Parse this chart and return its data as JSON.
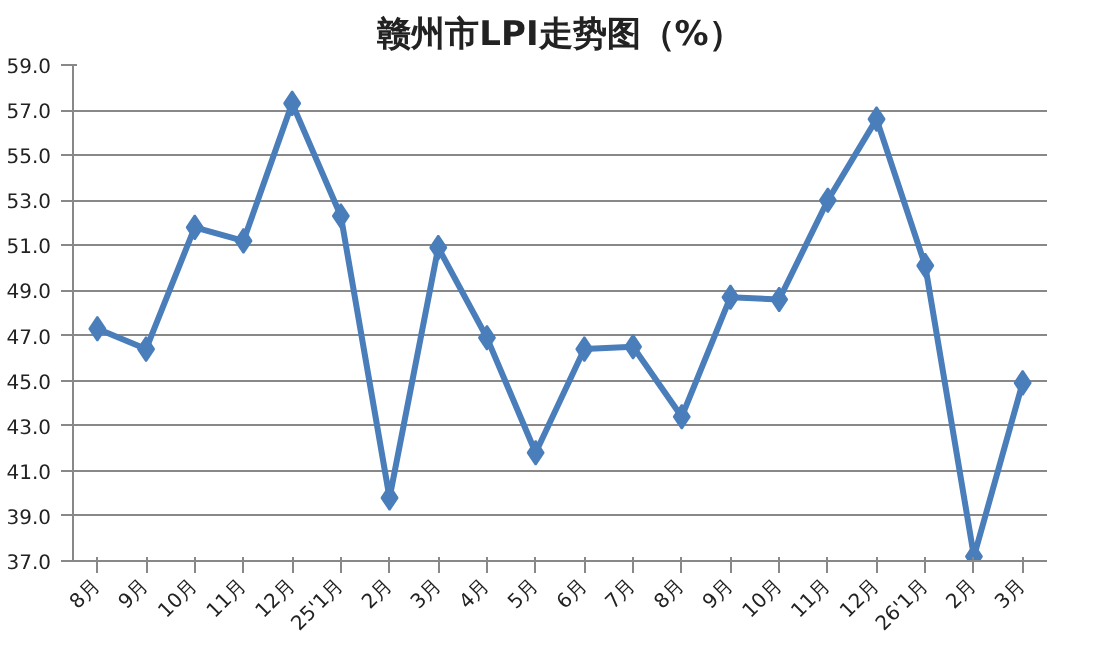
{
  "chart_data": {
    "type": "line",
    "title": "赣州市LPI走势图（%）",
    "categories": [
      "8月",
      "9月",
      "10月",
      "11月",
      "12月",
      "25'1月",
      "2月",
      "3月",
      "4月",
      "5月",
      "6月",
      "7月",
      "8月",
      "9月",
      "10月",
      "11月",
      "12月",
      "26'1月",
      "2月",
      "3月"
    ],
    "series": [
      {
        "color": "#4a7ebb",
        "values": [
          47.3,
          46.4,
          51.8,
          51.2,
          57.3,
          52.3,
          39.8,
          50.9,
          46.9,
          41.8,
          46.4,
          46.5,
          43.4,
          48.7,
          48.6,
          53.0,
          56.6,
          50.1,
          37.2,
          44.9
        ]
      }
    ],
    "ylim": [
      37,
      59
    ],
    "yticks": [
      {
        "value": 37,
        "label": "37.0"
      },
      {
        "value": 39,
        "label": "39.0"
      },
      {
        "value": 41,
        "label": "41.0"
      },
      {
        "value": 43,
        "label": "43.0"
      },
      {
        "value": 45,
        "label": "45.0"
      },
      {
        "value": 47,
        "label": "47.0"
      },
      {
        "value": 49,
        "label": "49.0"
      },
      {
        "value": 51,
        "label": "51.0"
      },
      {
        "value": 53,
        "label": "53.0"
      },
      {
        "value": 55,
        "label": "55.0"
      },
      {
        "value": 57,
        "label": "57.0"
      },
      {
        "value": 59,
        "label": "59.0"
      }
    ],
    "grid": "y",
    "marker": "diamond",
    "line_style": "solid"
  }
}
